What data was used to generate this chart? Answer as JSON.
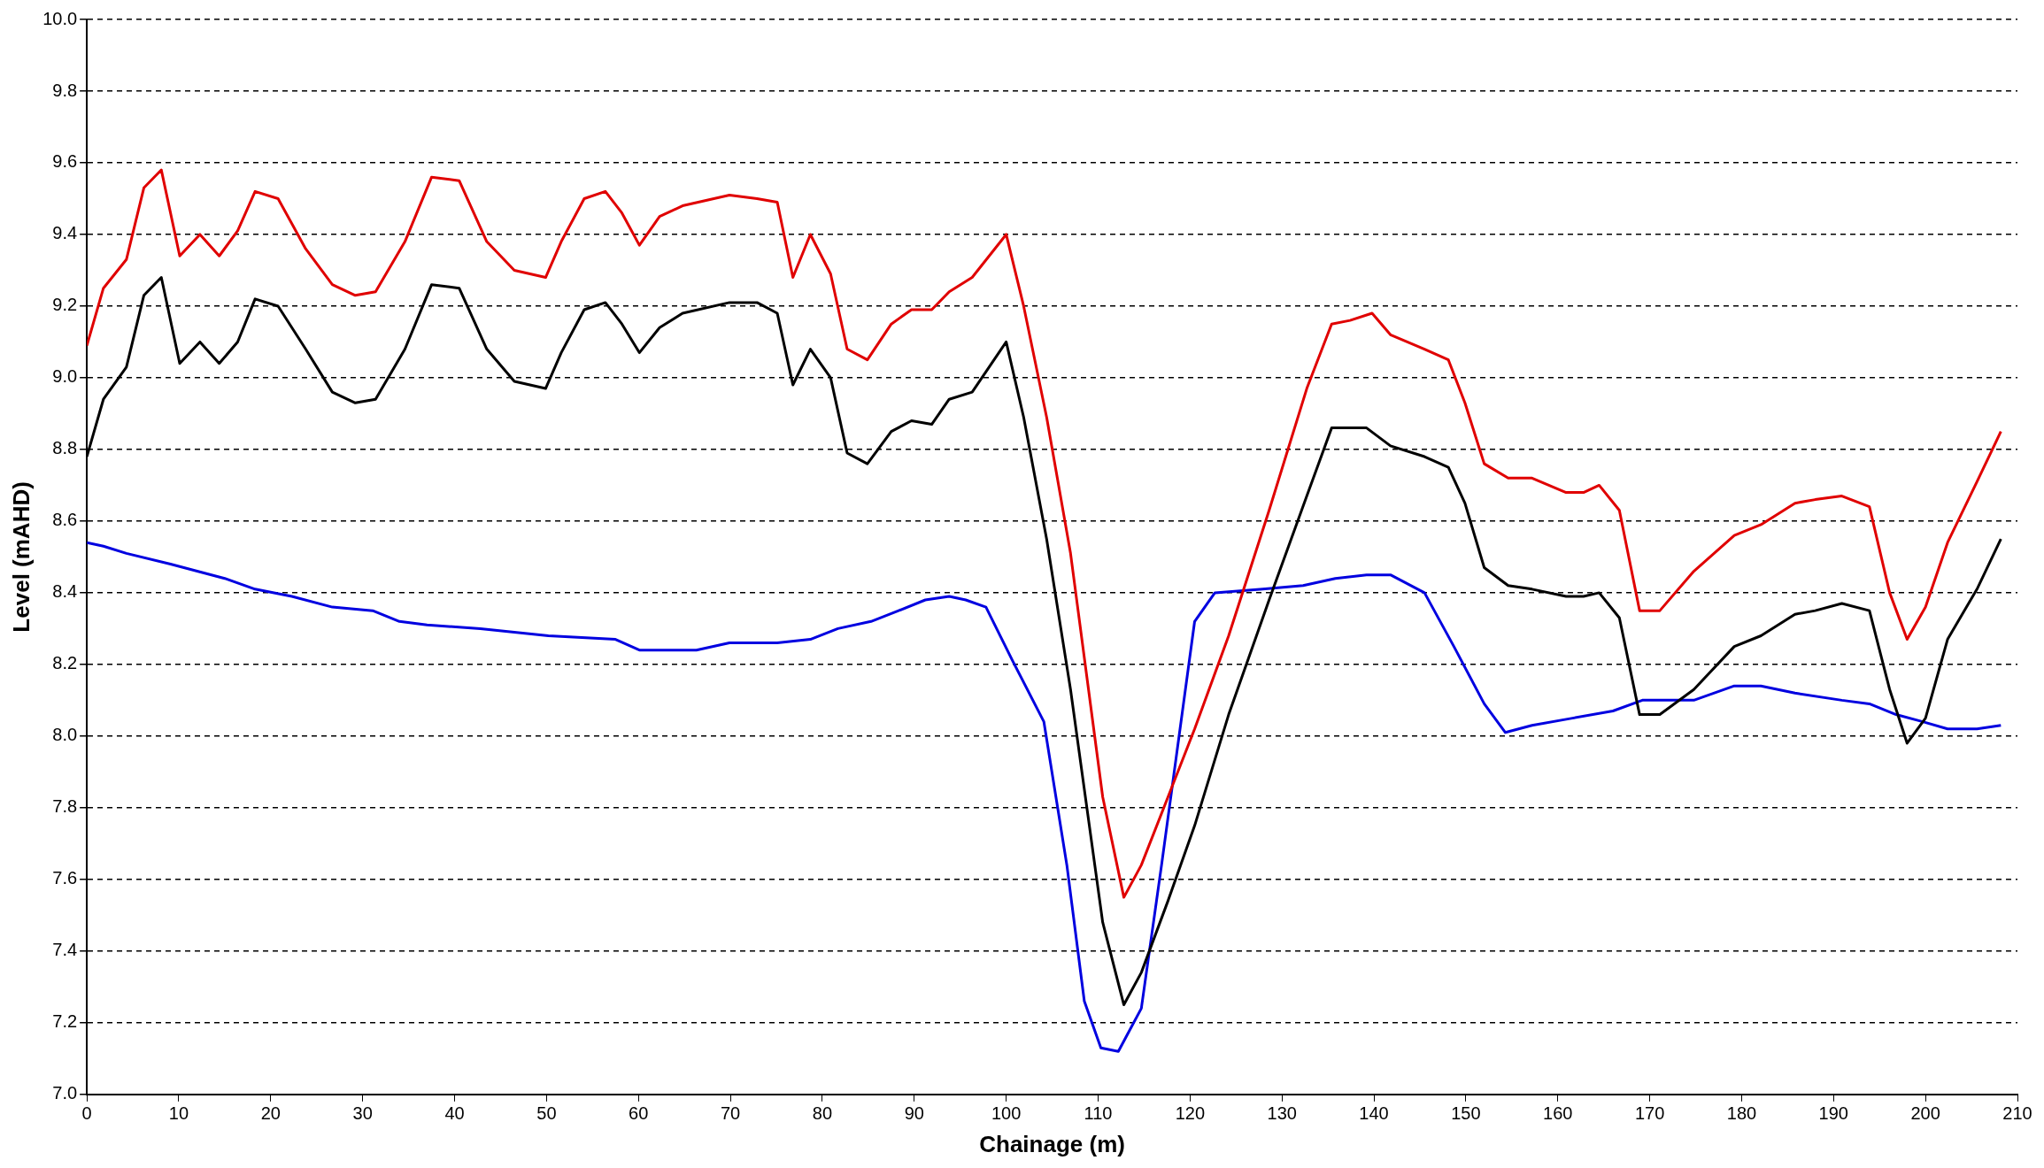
{
  "chart_data": {
    "type": "line",
    "xlabel": "Chainage (m)",
    "ylabel": "Level (mAHD)",
    "xlim": [
      0,
      210
    ],
    "xticks": [
      0,
      10,
      20,
      30,
      40,
      50,
      60,
      70,
      80,
      90,
      100,
      110,
      120,
      130,
      140,
      150,
      160,
      170,
      180,
      190,
      200,
      210
    ],
    "ylim": [
      7,
      10
    ],
    "yticks": [
      {
        "value": 7,
        "label": "7.0"
      },
      7.2,
      7.4,
      7.6,
      7.8,
      {
        "value": 8,
        "label": "8.0"
      },
      8.2,
      8.4,
      8.6,
      8.8,
      {
        "value": 9,
        "label": "9.0"
      },
      9.2,
      9.4,
      9.6,
      9.8,
      {
        "value": 10,
        "label": "10.0"
      }
    ],
    "grid": "y",
    "legend": false,
    "marker": "none",
    "line_style": "solid",
    "series": [
      {
        "color": "#e00000",
        "x": [
          0,
          1.8,
          4.3,
          6.2,
          8.1,
          10.1,
          12.3,
          14.4,
          16.4,
          18.3,
          20.8,
          23.8,
          26.7,
          29.2,
          31.4,
          34.6,
          37.5,
          40.5,
          43.5,
          46.5,
          49.9,
          51.6,
          54.1,
          56.4,
          58.2,
          60.1,
          62.3,
          64.8,
          69.9,
          72.9,
          75.1,
          76.8,
          78.7,
          80.9,
          82.7,
          84.9,
          87.5,
          89.7,
          91.9,
          93.8,
          96.3,
          100,
          101.9,
          104.4,
          107,
          110.5,
          112.8,
          114.7,
          117.6,
          120.5,
          124.2,
          128.6,
          132.7,
          135.4,
          137.4,
          139.8,
          141.8,
          145.5,
          148.1,
          149.9,
          152,
          154.6,
          157.2,
          160.9,
          162.8,
          164.5,
          166.7,
          168.9,
          171.1,
          174.8,
          179.2,
          182.1,
          185.8,
          188,
          190.9,
          193.9,
          196.1,
          198,
          200,
          202.4,
          205.6,
          208.2
        ],
        "values": [
          9.09,
          9.25,
          9.33,
          9.53,
          9.58,
          9.34,
          9.4,
          9.34,
          9.41,
          9.52,
          9.5,
          9.36,
          9.26,
          9.23,
          9.24,
          9.38,
          9.56,
          9.55,
          9.38,
          9.3,
          9.28,
          9.38,
          9.5,
          9.52,
          9.46,
          9.37,
          9.45,
          9.48,
          9.51,
          9.5,
          9.49,
          9.28,
          9.4,
          9.29,
          9.08,
          9.05,
          9.15,
          9.19,
          9.19,
          9.24,
          9.28,
          9.4,
          9.2,
          8.89,
          8.51,
          7.83,
          7.55,
          7.64,
          7.83,
          8.02,
          8.28,
          8.63,
          8.97,
          9.15,
          9.16,
          9.18,
          9.12,
          9.08,
          9.05,
          8.93,
          8.76,
          8.72,
          8.72,
          8.68,
          8.68,
          8.7,
          8.63,
          8.35,
          8.35,
          8.46,
          8.56,
          8.59,
          8.65,
          8.66,
          8.67,
          8.64,
          8.4,
          8.27,
          8.36,
          8.54,
          8.71,
          8.85
        ]
      },
      {
        "color": "#000000",
        "x": [
          0,
          1.8,
          4.3,
          6.2,
          8.1,
          10.1,
          12.3,
          14.4,
          16.4,
          18.3,
          20.8,
          23.8,
          26.7,
          29.2,
          31.4,
          34.6,
          37.5,
          40.5,
          43.5,
          46.5,
          49.9,
          51.6,
          54.1,
          56.4,
          58.2,
          60.1,
          62.3,
          64.8,
          69.9,
          72.9,
          75.1,
          76.8,
          78.7,
          80.9,
          82.7,
          84.9,
          87.5,
          89.7,
          91.9,
          93.8,
          96.3,
          100,
          101.9,
          104.4,
          107,
          110.5,
          112.8,
          114.7,
          117.6,
          120.5,
          124.2,
          128.6,
          132.7,
          135.4,
          137.4,
          139.2,
          141.8,
          145.5,
          148.1,
          149.9,
          152,
          154.6,
          157.2,
          160.9,
          162.8,
          164.5,
          166.7,
          168.9,
          171.1,
          174.8,
          179.2,
          182.1,
          185.8,
          188,
          190.9,
          193.9,
          196.1,
          198,
          200,
          202.4,
          205.6,
          208.2
        ],
        "values": [
          8.78,
          8.94,
          9.03,
          9.23,
          9.28,
          9.04,
          9.1,
          9.04,
          9.1,
          9.22,
          9.2,
          9.08,
          8.96,
          8.93,
          8.94,
          9.08,
          9.26,
          9.25,
          9.08,
          8.99,
          8.97,
          9.07,
          9.19,
          9.21,
          9.15,
          9.07,
          9.14,
          9.18,
          9.21,
          9.21,
          9.18,
          8.98,
          9.08,
          9,
          8.79,
          8.76,
          8.85,
          8.88,
          8.87,
          8.94,
          8.96,
          9.1,
          8.89,
          8.55,
          8.13,
          7.48,
          7.25,
          7.34,
          7.54,
          7.75,
          8.06,
          8.38,
          8.67,
          8.86,
          8.86,
          8.86,
          8.81,
          8.78,
          8.75,
          8.65,
          8.47,
          8.42,
          8.41,
          8.39,
          8.39,
          8.4,
          8.33,
          8.06,
          8.06,
          8.13,
          8.25,
          8.28,
          8.34,
          8.35,
          8.37,
          8.35,
          8.13,
          7.98,
          8.05,
          8.27,
          8.41,
          8.55
        ]
      },
      {
        "color": "#0000e0",
        "x": [
          0,
          1.8,
          4.3,
          9.1,
          15,
          18.3,
          22.3,
          26.7,
          31.1,
          34,
          37,
          42.8,
          50.2,
          57.5,
          60.1,
          66.3,
          69.9,
          75.1,
          78.7,
          81.7,
          85.3,
          88.3,
          91.2,
          93.8,
          95.6,
          97.8,
          100.7,
          104.1,
          106.6,
          108.5,
          110.3,
          112.2,
          114.7,
          116.9,
          120.5,
          122.7,
          127.9,
          132.3,
          135.8,
          139.2,
          141.8,
          145.5,
          148.7,
          152,
          154.3,
          157.2,
          161.6,
          166,
          169.2,
          174.8,
          179.2,
          182.1,
          185.8,
          190.9,
          193.9,
          196.8,
          199.7,
          202.4,
          205.6,
          208.2
        ],
        "values": [
          8.54,
          8.53,
          8.51,
          8.48,
          8.44,
          8.41,
          8.39,
          8.36,
          8.35,
          8.32,
          8.31,
          8.3,
          8.28,
          8.27,
          8.24,
          8.24,
          8.26,
          8.26,
          8.27,
          8.3,
          8.32,
          8.35,
          8.38,
          8.39,
          8.38,
          8.36,
          8.21,
          8.04,
          7.64,
          7.26,
          7.13,
          7.12,
          7.24,
          7.64,
          8.32,
          8.4,
          8.41,
          8.42,
          8.44,
          8.45,
          8.45,
          8.4,
          8.25,
          8.09,
          8.01,
          8.03,
          8.05,
          8.07,
          8.1,
          8.1,
          8.14,
          8.14,
          8.12,
          8.1,
          8.09,
          8.06,
          8.04,
          8.02,
          8.02,
          8.03
        ]
      }
    ]
  }
}
